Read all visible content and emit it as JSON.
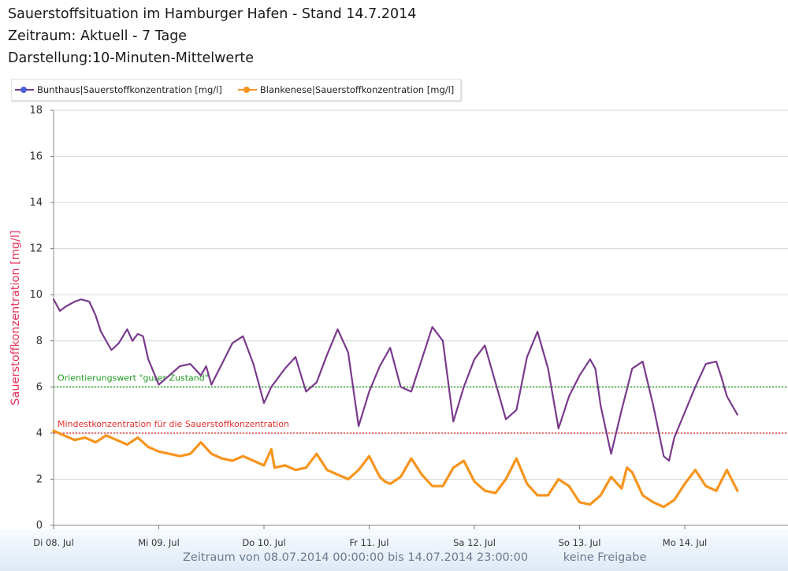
{
  "header": {
    "title": "Sauerstoffsituation im Hamburger Hafen - Stand 14.7.2014",
    "period": "Zeitraum: Aktuell - 7 Tage",
    "display": "Darstellung:10-Minuten-Mittelwerte"
  },
  "legend": [
    {
      "label": "Bunthaus|Sauerstoffkonzentration [mg/l]",
      "color": "#7a3a8c",
      "marker": "#4b5fd6"
    },
    {
      "label": "Blankenese|Sauerstoffkonzentration [mg/l]",
      "color": "#f7941d",
      "marker": "#f7941d"
    }
  ],
  "footer": {
    "range": "Zeitraum von 08.07.2014 00:00:00 bis 14.07.2014 23:00:00",
    "status": "keine Freigabe"
  },
  "chart_data": {
    "type": "line",
    "ylabel": "Sauerstoffkonzentration [mg/l]",
    "ylim": [
      0,
      18
    ],
    "yticks": [
      0,
      2,
      4,
      6,
      8,
      10,
      12,
      14,
      16,
      18
    ],
    "xlim": [
      0,
      7
    ],
    "xticks": [
      {
        "x": 0,
        "label": "Di 08. Jul"
      },
      {
        "x": 1,
        "label": "Mi 09. Jul"
      },
      {
        "x": 2,
        "label": "Do 10. Jul"
      },
      {
        "x": 3,
        "label": "Fr 11. Jul"
      },
      {
        "x": 4,
        "label": "Sa 12. Jul"
      },
      {
        "x": 5,
        "label": "So 13. Jul"
      },
      {
        "x": 6,
        "label": "Mo 14. Jul"
      }
    ],
    "grid": true,
    "reference_lines": [
      {
        "y": 6,
        "label": "Orientierungswert \"guter Zustand\"",
        "color": "#1f9a1f"
      },
      {
        "y": 4,
        "label": "Mindestkonzentration für die Sauerstoffkonzentration",
        "color": "#e53030"
      }
    ],
    "series": [
      {
        "name": "Bunthaus|Sauerstoffkonzentration [mg/l]",
        "color": "#7a3a8c",
        "x": [
          0.0,
          0.06,
          0.12,
          0.2,
          0.26,
          0.34,
          0.4,
          0.45,
          0.55,
          0.62,
          0.7,
          0.75,
          0.8,
          0.85,
          0.9,
          1.0,
          1.1,
          1.2,
          1.3,
          1.4,
          1.45,
          1.5,
          1.6,
          1.7,
          1.8,
          1.9,
          2.0,
          2.07,
          2.2,
          2.3,
          2.4,
          2.5,
          2.6,
          2.7,
          2.8,
          2.9,
          3.0,
          3.1,
          3.2,
          3.3,
          3.4,
          3.5,
          3.6,
          3.7,
          3.8,
          3.9,
          4.0,
          4.1,
          4.2,
          4.3,
          4.4,
          4.5,
          4.6,
          4.7,
          4.8,
          4.9,
          5.0,
          5.1,
          5.15,
          5.2,
          5.3,
          5.4,
          5.5,
          5.6,
          5.7,
          5.8,
          5.85,
          5.9,
          6.0,
          6.1,
          6.2,
          6.3,
          6.35,
          6.4,
          6.5
        ],
        "y": [
          9.8,
          9.3,
          9.5,
          9.7,
          9.8,
          9.7,
          9.1,
          8.4,
          7.6,
          7.9,
          8.5,
          8.0,
          8.3,
          8.2,
          7.2,
          6.1,
          6.5,
          6.9,
          7.0,
          6.5,
          6.9,
          6.1,
          7.0,
          7.9,
          8.2,
          7.0,
          5.3,
          6.0,
          6.8,
          7.3,
          5.8,
          6.2,
          7.4,
          8.5,
          7.5,
          4.3,
          5.8,
          6.9,
          7.7,
          6.0,
          5.8,
          7.2,
          8.6,
          8.0,
          4.5,
          6.0,
          7.2,
          7.8,
          6.2,
          4.6,
          5.0,
          7.3,
          8.4,
          6.8,
          4.2,
          5.6,
          6.5,
          7.2,
          6.8,
          5.2,
          3.1,
          5.0,
          6.8,
          7.1,
          5.2,
          3.0,
          2.8,
          3.8,
          4.9,
          6.0,
          7.0,
          7.1,
          6.4,
          5.6,
          4.8
        ]
      },
      {
        "name": "Blankenese|Sauerstoffkonzentration [mg/l]",
        "color": "#f7941d",
        "x": [
          0.0,
          0.1,
          0.2,
          0.3,
          0.4,
          0.5,
          0.6,
          0.7,
          0.8,
          0.9,
          1.0,
          1.1,
          1.2,
          1.3,
          1.4,
          1.5,
          1.6,
          1.7,
          1.8,
          1.9,
          2.0,
          2.07,
          2.1,
          2.2,
          2.3,
          2.4,
          2.5,
          2.6,
          2.7,
          2.8,
          2.9,
          3.0,
          3.1,
          3.15,
          3.2,
          3.3,
          3.4,
          3.5,
          3.6,
          3.7,
          3.8,
          3.9,
          4.0,
          4.1,
          4.2,
          4.3,
          4.4,
          4.5,
          4.6,
          4.7,
          4.8,
          4.9,
          5.0,
          5.1,
          5.2,
          5.3,
          5.4,
          5.45,
          5.5,
          5.6,
          5.7,
          5.8,
          5.9,
          6.0,
          6.1,
          6.2,
          6.3,
          6.4,
          6.5
        ],
        "y": [
          4.1,
          3.9,
          3.7,
          3.8,
          3.6,
          3.9,
          3.7,
          3.5,
          3.8,
          3.4,
          3.2,
          3.1,
          3.0,
          3.1,
          3.6,
          3.1,
          2.9,
          2.8,
          3.0,
          2.8,
          2.6,
          3.3,
          2.5,
          2.6,
          2.4,
          2.5,
          3.1,
          2.4,
          2.2,
          2.0,
          2.4,
          3.0,
          2.1,
          1.9,
          1.8,
          2.1,
          2.9,
          2.2,
          1.7,
          1.7,
          2.5,
          2.8,
          1.9,
          1.5,
          1.4,
          2.0,
          2.9,
          1.8,
          1.3,
          1.3,
          2.0,
          1.7,
          1.0,
          0.9,
          1.3,
          2.1,
          1.6,
          2.5,
          2.3,
          1.3,
          1.0,
          0.8,
          1.1,
          1.8,
          2.4,
          1.7,
          1.5,
          2.4,
          1.5
        ]
      }
    ]
  }
}
